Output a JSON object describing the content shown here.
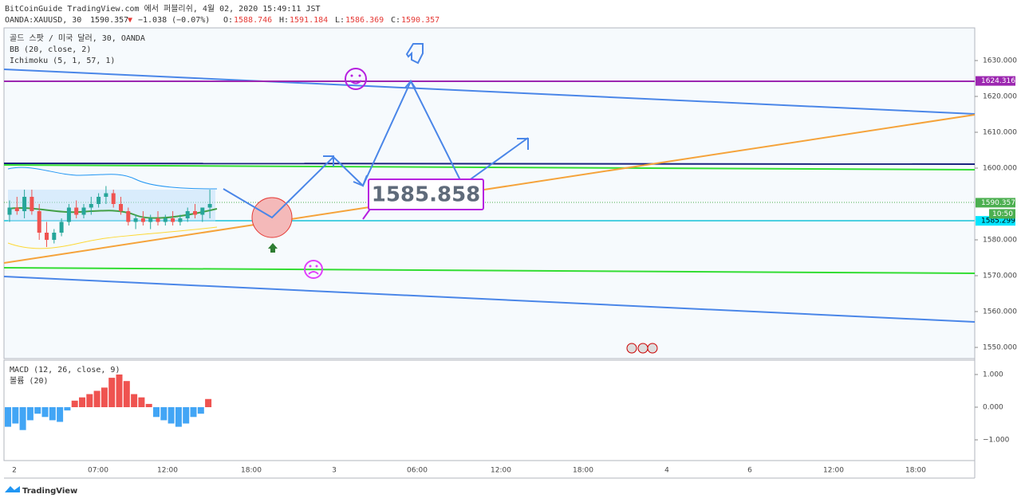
{
  "header": {
    "publisher": "BitCoinGuide TradingView.com 에서 퍼블리쉬, 4월 02, 2020 15:49:11 JST",
    "symbol": "OANDA:XAUUSD, 30",
    "last": "1590.357",
    "direction": "▼",
    "change": "−1.038 (−0.07%)",
    "ohlc": [
      {
        "label": "O:",
        "value": "1588.746"
      },
      {
        "label": "H:",
        "value": "1591.184"
      },
      {
        "label": "L:",
        "value": "1586.369"
      },
      {
        "label": "C:",
        "value": "1590.357"
      }
    ]
  },
  "legend": [
    "골드 스팟 / 미국 달러, 30, OANDA",
    "BB (20, close, 2)",
    "Ichimoku (5, 1, 57, 1)"
  ],
  "price_axis": {
    "ticks": [
      {
        "value": 1630,
        "label": "1630.000"
      },
      {
        "value": 1620,
        "label": "1620.000"
      },
      {
        "value": 1610,
        "label": "1610.000"
      },
      {
        "value": 1600,
        "label": "1600.000"
      },
      {
        "value": 1580,
        "label": "1580.000"
      },
      {
        "value": 1570,
        "label": "1570.000"
      },
      {
        "value": 1560,
        "label": "1560.000"
      },
      {
        "value": 1550,
        "label": "1550.000"
      }
    ]
  },
  "price_tags": [
    {
      "value": 1624.316,
      "label": "1624.316",
      "color": "#9c27b0"
    },
    {
      "value": 1590.357,
      "label": "1590.357",
      "color": "#4caf50"
    },
    {
      "value": 1585.299,
      "label": "1585.299",
      "color": "#00e5ff"
    }
  ],
  "bar_timer": "10:50",
  "annotation": "1585.858",
  "candles": [
    [
      1587,
      1591,
      1585,
      1589
    ],
    [
      1589,
      1592,
      1587,
      1588
    ],
    [
      1588,
      1594,
      1586,
      1592
    ],
    [
      1592,
      1594,
      1587,
      1588
    ],
    [
      1588,
      1590,
      1580,
      1582
    ],
    [
      1582,
      1585,
      1578,
      1580
    ],
    [
      1580,
      1583,
      1579,
      1582
    ],
    [
      1582,
      1586,
      1581,
      1585
    ],
    [
      1585,
      1590,
      1584,
      1589
    ],
    [
      1589,
      1591,
      1586,
      1587
    ],
    [
      1587,
      1590,
      1586,
      1589
    ],
    [
      1589,
      1592,
      1587,
      1590
    ],
    [
      1590,
      1593,
      1589,
      1592
    ],
    [
      1592,
      1595,
      1590,
      1593
    ],
    [
      1593,
      1594,
      1589,
      1590
    ],
    [
      1590,
      1592,
      1587,
      1588
    ],
    [
      1588,
      1589,
      1584,
      1585
    ],
    [
      1585,
      1587,
      1583,
      1586
    ],
    [
      1586,
      1588,
      1584,
      1585
    ],
    [
      1585,
      1587,
      1583,
      1586
    ],
    [
      1586,
      1588,
      1584,
      1585
    ],
    [
      1585,
      1587,
      1584,
      1586
    ],
    [
      1586,
      1588,
      1584,
      1585
    ],
    [
      1585,
      1587,
      1584,
      1586
    ],
    [
      1586,
      1589,
      1585,
      1588
    ],
    [
      1588,
      1590,
      1586,
      1587
    ],
    [
      1587,
      1589,
      1585,
      1589
    ],
    [
      1589,
      1594,
      1586,
      1590
    ]
  ],
  "macd_legend": [
    "MACD (12, 26, close, 9)",
    "볼륨 (20)"
  ],
  "macd_axis": {
    "ticks": [
      {
        "value": 1,
        "label": "1.000"
      },
      {
        "value": 0,
        "label": "0.000"
      },
      {
        "value": -1,
        "label": "−1.000"
      }
    ]
  },
  "macd_histogram": [
    -0.6,
    -0.5,
    -0.7,
    -0.4,
    -0.2,
    -0.3,
    -0.4,
    -0.45,
    -0.1,
    0.2,
    0.3,
    0.4,
    0.5,
    0.6,
    0.9,
    1.0,
    0.8,
    0.4,
    0.3,
    0.1,
    -0.3,
    -0.4,
    -0.5,
    -0.6,
    -0.5,
    -0.3,
    -0.2,
    0.25
  ],
  "time_axis": [
    "2",
    "07:00",
    "12:00",
    "18:00",
    "3",
    "06:00",
    "12:00",
    "18:00",
    "4",
    "6",
    "12:00",
    "18:00"
  ],
  "footer": "TradingView"
}
